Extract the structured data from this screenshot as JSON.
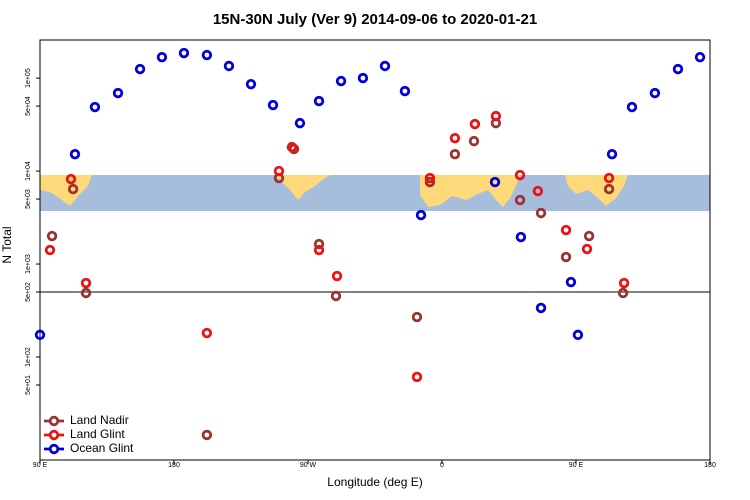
{
  "chart_data": {
    "type": "scatter",
    "title": "15N-30N July (Ver 9)   2014-09-06 to 2020-01-21",
    "xlabel": "Longitude (deg E)",
    "ylabel": "N Total",
    "xlim": [
      90,
      540
    ],
    "xticks": [
      {
        "value": 90,
        "label": "90 E"
      },
      {
        "value": 180,
        "label": "180"
      },
      {
        "value": 270,
        "label": "90 W"
      },
      {
        "value": 360,
        "label": "0"
      },
      {
        "value": 450,
        "label": "90 E"
      },
      {
        "value": 540,
        "label": "180"
      }
    ],
    "ylim": [
      7.8,
      257000
    ],
    "log_y": true,
    "yticks": [
      {
        "value": 50,
        "label": "5e+01"
      },
      {
        "value": 100,
        "label": "1e+02"
      },
      {
        "value": 500,
        "label": "5e+02"
      },
      {
        "value": 1000,
        "label": "1e+03"
      },
      {
        "value": 5000,
        "label": "5e+03"
      },
      {
        "value": 10000,
        "label": "1e+04"
      },
      {
        "value": 50000,
        "label": "5e+04"
      },
      {
        "value": 100000,
        "label": "1e+05"
      }
    ],
    "hline": 500,
    "legend": "bottom-left",
    "series": [
      {
        "name": "Land Nadir",
        "color": "#9b3232",
        "x": [
          98.1,
          112.2,
          120.9,
          202.1,
          250.5,
          260.6,
          277.4,
          288.8,
          343.2,
          351.9,
          368.7,
          381.5,
          396.2,
          412.4,
          426.5,
          443.3,
          458.8,
          472.2,
          481.6
        ],
        "values": [
          2000,
          6400,
          488,
          14.5,
          8410,
          17300,
          1640,
          453,
          269,
          7620,
          15200,
          21000,
          32800,
          4880,
          3540,
          1190,
          2000,
          6400,
          488
        ]
      },
      {
        "name": "Land Glint",
        "color": "#ee1111",
        "x": [
          96.7,
          110.8,
          120.9,
          202.1,
          250.5,
          259.2,
          277.4,
          289.5,
          343.2,
          351.9,
          368.7,
          382.1,
          396.2,
          412.4,
          424.4,
          443.3,
          457.4,
          472.2,
          482.3
        ],
        "values": [
          1415,
          8200,
          625,
          181,
          10000,
          18100,
          1415,
          743,
          61,
          8410,
          22600,
          32000,
          39000,
          9060,
          6100,
          2320,
          1450,
          8410,
          625
        ]
      },
      {
        "name": "Ocean Glint",
        "color": "#0000dd",
        "x": [
          90,
          113.5,
          126.9,
          142.4,
          157.2,
          171.9,
          186.7,
          202.1,
          216.9,
          231.7,
          246.5,
          264.6,
          277.4,
          292.2,
          306.9,
          321.7,
          335.1,
          345.9,
          395.6,
          413.0,
          426.5,
          446.6,
          451.3,
          474.2,
          487.6,
          503.0,
          518.5,
          533.3
        ],
        "values": [
          173,
          15200,
          48800,
          69000,
          125000,
          168000,
          186000,
          177000,
          135000,
          86100,
          51300,
          32800,
          56600,
          92900,
          100000,
          135000,
          72500,
          3360,
          7620,
          1950,
          337,
          640,
          173,
          15200,
          48800,
          69000,
          125000,
          168000
        ]
      }
    ]
  }
}
